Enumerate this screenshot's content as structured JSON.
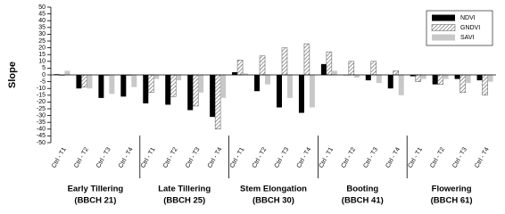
{
  "chart_data": {
    "type": "grouped-bar",
    "y_label": "Slope",
    "categories": [
      "Ctrl - T1",
      "Ctrl - T2",
      "Ctrl - T3",
      "Ctrl - T4",
      "Ctrl - T1",
      "Ctrl - T2",
      "Ctrl - T3",
      "Ctrl - T4",
      "Ctrl - T1",
      "Ctrl - T2",
      "Ctrl - T3",
      "Ctrl - T4",
      "Ctrl - T1",
      "Ctrl - T2",
      "Ctrl - T3",
      "Ctrl - T4",
      "Ctrl - T1",
      "Ctrl - T2",
      "Ctrl - T3",
      "Ctrl - T4"
    ],
    "groups": [
      {
        "name": "Early Tillering",
        "code": "(BBCH 21)",
        "size": 4
      },
      {
        "name": "Late Tillering",
        "code": "(BBCH 25)",
        "size": 4
      },
      {
        "name": "Stem Elongation",
        "code": "(BBCH 30)",
        "size": 4
      },
      {
        "name": "Booting",
        "code": "(BBCH 41)",
        "size": 4
      },
      {
        "name": "Flowering",
        "code": "(BBCH 61)",
        "size": 4
      }
    ],
    "series": [
      {
        "name": "NDVI",
        "color": "#000000",
        "hatch": false,
        "values": [
          0.5,
          -10,
          -17,
          -16,
          -21,
          -22,
          -26,
          -31,
          2,
          -12,
          -24,
          -28,
          8,
          0,
          -4,
          -10,
          -1,
          -7,
          -3,
          -4
        ]
      },
      {
        "name": "GNDVI",
        "color": "#555555",
        "hatch": true,
        "values": [
          0,
          -9,
          0,
          0,
          -13,
          -16,
          -23,
          -40,
          11,
          14,
          20,
          23,
          17,
          10,
          10,
          3,
          -5,
          -7,
          -13,
          -15
        ]
      },
      {
        "name": "SAVI",
        "color": "#c8c8c8",
        "hatch": false,
        "values": [
          3,
          -10,
          -14,
          -9,
          -3,
          -4,
          -13,
          -17,
          1,
          -7,
          -17,
          -24,
          3,
          -2,
          -6,
          -15,
          -3,
          -3,
          -6,
          -5
        ]
      }
    ],
    "ylim": [
      -50,
      50
    ],
    "yticks": [
      -50,
      -45,
      -40,
      -35,
      -30,
      -25,
      -20,
      -15,
      -10,
      -5,
      0,
      5,
      10,
      15,
      20,
      25,
      30,
      35,
      40,
      45,
      50
    ],
    "legend": "upper right",
    "grid": false
  }
}
